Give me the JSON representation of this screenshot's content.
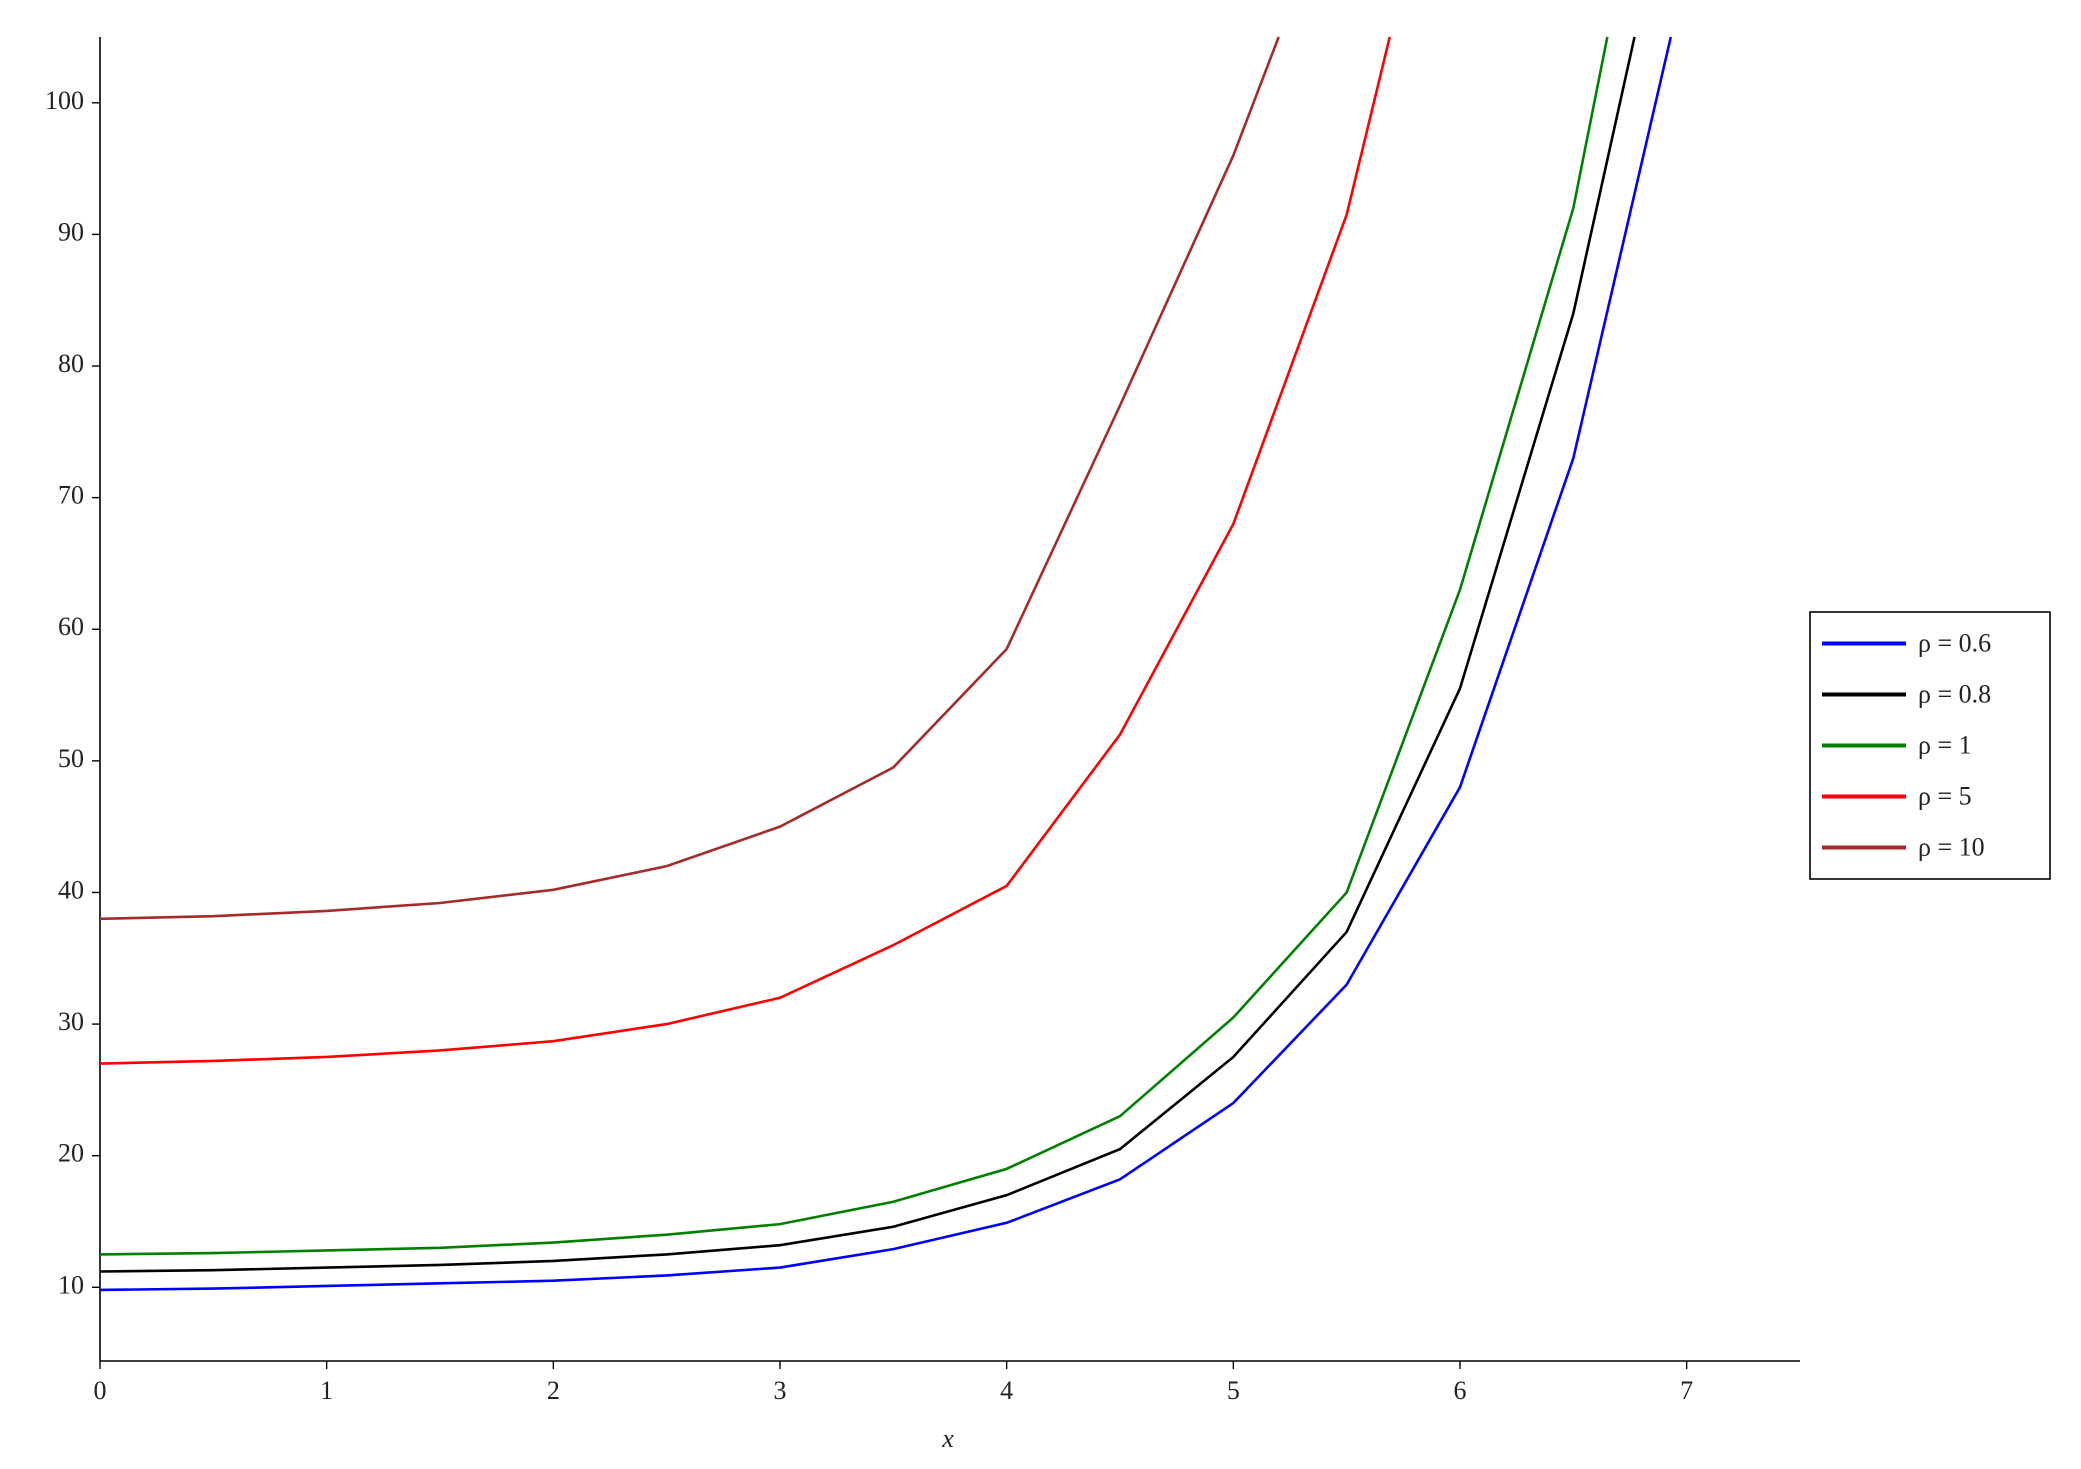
{
  "chart_data": {
    "type": "line",
    "x_label": "x",
    "xlim": [
      0,
      7.5
    ],
    "xticks": [
      0,
      1,
      2,
      3,
      4,
      5,
      6,
      7
    ],
    "ylim": [
      4.4,
      105
    ],
    "yticks": [
      10,
      20,
      30,
      40,
      50,
      60,
      70,
      80,
      90,
      100
    ],
    "grid": false,
    "legend": "right",
    "series": [
      {
        "name": "ρ = 0.6",
        "color": "#0000ff",
        "x": [
          0,
          0.5,
          1,
          1.5,
          2,
          2.5,
          3,
          3.5,
          4,
          4.5,
          5,
          5.5,
          6,
          6.5,
          6.93
        ],
        "values": [
          9.8,
          9.9,
          10.1,
          10.3,
          10.5,
          10.9,
          11.5,
          12.9,
          14.9,
          18.2,
          24,
          33,
          48,
          73,
          105
        ]
      },
      {
        "name": "ρ = 0.8",
        "color": "#000000",
        "x": [
          0,
          0.5,
          1,
          1.5,
          2,
          2.5,
          3,
          3.5,
          4,
          4.5,
          5,
          5.5,
          6,
          6.5,
          6.77
        ],
        "values": [
          11.2,
          11.3,
          11.5,
          11.7,
          12,
          12.5,
          13.2,
          14.6,
          17,
          20.5,
          27.5,
          37,
          55.5,
          84,
          105
        ]
      },
      {
        "name": "ρ = 1",
        "color": "#008000",
        "x": [
          0,
          0.5,
          1,
          1.5,
          2,
          2.5,
          3,
          3.5,
          4,
          4.5,
          5,
          5.5,
          6,
          6.5,
          6.65
        ],
        "values": [
          12.5,
          12.6,
          12.8,
          13,
          13.4,
          14,
          14.8,
          16.5,
          19,
          23,
          30.5,
          40,
          63,
          92,
          105
        ]
      },
      {
        "name": "ρ = 5",
        "color": "#ff0000",
        "x": [
          0,
          0.5,
          1,
          1.5,
          2,
          2.5,
          3,
          3.5,
          4,
          4.5,
          5,
          5.5,
          5.69
        ],
        "values": [
          27,
          27.2,
          27.5,
          28,
          28.7,
          30,
          32,
          36,
          40.5,
          52,
          68,
          91.5,
          105
        ]
      },
      {
        "name": "ρ = 10",
        "color": "#a52a2a",
        "x": [
          0,
          0.5,
          1,
          1.5,
          2,
          2.5,
          3,
          3.5,
          4,
          4.5,
          5,
          5.2
        ],
        "values": [
          38,
          38.2,
          38.6,
          39.2,
          40.2,
          42,
          45,
          49.5,
          58.5,
          77,
          96,
          105
        ]
      }
    ]
  }
}
